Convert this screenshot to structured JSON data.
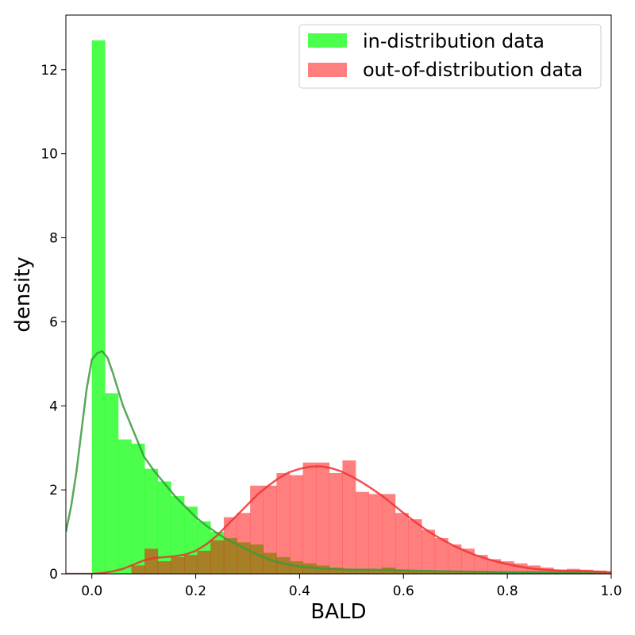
{
  "chart_data": {
    "type": "bar",
    "subtype": "overlaid histogram with density curves",
    "title": "",
    "xlabel": "BALD",
    "ylabel": "density",
    "xlim": [
      -0.05,
      1.0
    ],
    "ylim": [
      0,
      13.3
    ],
    "xticks": [
      "0.0",
      "0.2",
      "0.4",
      "0.6",
      "0.8",
      "1.0"
    ],
    "yticks": [
      "0",
      "2",
      "4",
      "6",
      "8",
      "10",
      "12"
    ],
    "grid": false,
    "legend": {
      "placement": "top-right",
      "entries": [
        "in-distribution data",
        "out-of-distribution data"
      ]
    },
    "bin_width": 0.0254,
    "series": [
      {
        "name": "in-distribution data",
        "color": "#00ff00",
        "alpha": 0.7,
        "bin_starts": [
          0.0,
          0.0254,
          0.0508,
          0.0762,
          0.1016,
          0.127,
          0.1524,
          0.1778,
          0.2032,
          0.2286,
          0.254,
          0.2794,
          0.3048,
          0.3302,
          0.3556,
          0.381,
          0.4064,
          0.4318,
          0.4572,
          0.4826,
          0.508,
          0.5334,
          0.5588,
          0.5842,
          0.6096,
          0.635,
          0.6604,
          0.6858,
          0.7112,
          0.7366,
          0.762,
          0.7874,
          0.8128,
          0.8382,
          0.8636,
          0.889,
          0.9144,
          0.9398,
          0.9652,
          0.9906
        ],
        "values": [
          12.7,
          4.3,
          3.2,
          3.1,
          2.5,
          2.2,
          1.85,
          1.6,
          1.25,
          1.0,
          0.85,
          0.75,
          0.7,
          0.5,
          0.4,
          0.3,
          0.25,
          0.2,
          0.15,
          0.12,
          0.12,
          0.1,
          0.15,
          0.1,
          0.08,
          0.08,
          0.07,
          0.07,
          0.06,
          0.06,
          0.05,
          0.05,
          0.05,
          0.04,
          0.04,
          0.04,
          0.04,
          0.03,
          0.03,
          0.03
        ],
        "kde": {
          "color": "#3a9a3a",
          "x": [
            -0.05,
            -0.04,
            -0.03,
            -0.02,
            -0.01,
            0.0,
            0.01,
            0.02,
            0.03,
            0.04,
            0.05,
            0.06,
            0.07,
            0.08,
            0.09,
            0.1,
            0.12,
            0.14,
            0.16,
            0.18,
            0.2,
            0.22,
            0.24,
            0.26,
            0.28,
            0.3,
            0.32,
            0.34,
            0.36,
            0.38,
            0.4,
            0.45,
            0.5,
            0.55,
            0.6,
            0.65,
            0.7,
            0.75,
            0.8,
            0.85,
            0.9,
            0.95,
            1.0
          ],
          "y": [
            1.0,
            1.6,
            2.4,
            3.4,
            4.4,
            5.1,
            5.25,
            5.3,
            5.15,
            4.8,
            4.4,
            4.0,
            3.7,
            3.4,
            3.1,
            2.8,
            2.45,
            2.15,
            1.85,
            1.6,
            1.35,
            1.15,
            0.98,
            0.82,
            0.7,
            0.57,
            0.45,
            0.35,
            0.27,
            0.22,
            0.17,
            0.12,
            0.1,
            0.1,
            0.08,
            0.07,
            0.06,
            0.05,
            0.04,
            0.04,
            0.03,
            0.03,
            0.02
          ]
        }
      },
      {
        "name": "out-of-distribution data",
        "color": "#ff0000",
        "alpha": 0.5,
        "bin_starts": [
          0.0762,
          0.1016,
          0.127,
          0.1524,
          0.1778,
          0.2032,
          0.2286,
          0.254,
          0.2794,
          0.3048,
          0.3302,
          0.3556,
          0.381,
          0.4064,
          0.4318,
          0.4572,
          0.4826,
          0.508,
          0.5334,
          0.5588,
          0.5842,
          0.6096,
          0.635,
          0.6604,
          0.6858,
          0.7112,
          0.7366,
          0.762,
          0.7874,
          0.8128,
          0.8382,
          0.8636,
          0.889,
          0.9144,
          0.9398,
          0.9652
        ],
        "values": [
          0.2,
          0.6,
          0.3,
          0.4,
          0.45,
          0.55,
          0.8,
          1.35,
          1.45,
          2.1,
          2.1,
          2.4,
          2.35,
          2.65,
          2.65,
          2.4,
          2.7,
          1.95,
          1.9,
          1.9,
          1.45,
          1.3,
          1.05,
          0.85,
          0.7,
          0.6,
          0.45,
          0.35,
          0.3,
          0.25,
          0.2,
          0.15,
          0.1,
          0.12,
          0.1,
          0.08
        ],
        "kde": {
          "color": "#ee3333",
          "x": [
            -0.05,
            0.0,
            0.02,
            0.04,
            0.06,
            0.08,
            0.1,
            0.12,
            0.14,
            0.16,
            0.18,
            0.2,
            0.22,
            0.24,
            0.26,
            0.28,
            0.3,
            0.32,
            0.34,
            0.36,
            0.38,
            0.4,
            0.42,
            0.44,
            0.46,
            0.48,
            0.5,
            0.52,
            0.54,
            0.56,
            0.58,
            0.6,
            0.62,
            0.64,
            0.66,
            0.68,
            0.7,
            0.72,
            0.74,
            0.76,
            0.78,
            0.8,
            0.82,
            0.84,
            0.86,
            0.88,
            0.9,
            0.92,
            0.94,
            0.96,
            0.98,
            1.0
          ],
          "y": [
            0.0,
            0.0,
            0.02,
            0.06,
            0.12,
            0.22,
            0.32,
            0.38,
            0.4,
            0.42,
            0.46,
            0.55,
            0.7,
            0.9,
            1.15,
            1.4,
            1.65,
            1.9,
            2.1,
            2.28,
            2.42,
            2.5,
            2.55,
            2.56,
            2.52,
            2.44,
            2.32,
            2.18,
            2.02,
            1.85,
            1.65,
            1.45,
            1.26,
            1.08,
            0.92,
            0.78,
            0.65,
            0.54,
            0.44,
            0.36,
            0.29,
            0.23,
            0.18,
            0.14,
            0.11,
            0.09,
            0.08,
            0.07,
            0.07,
            0.06,
            0.05,
            0.04
          ]
        }
      }
    ]
  }
}
